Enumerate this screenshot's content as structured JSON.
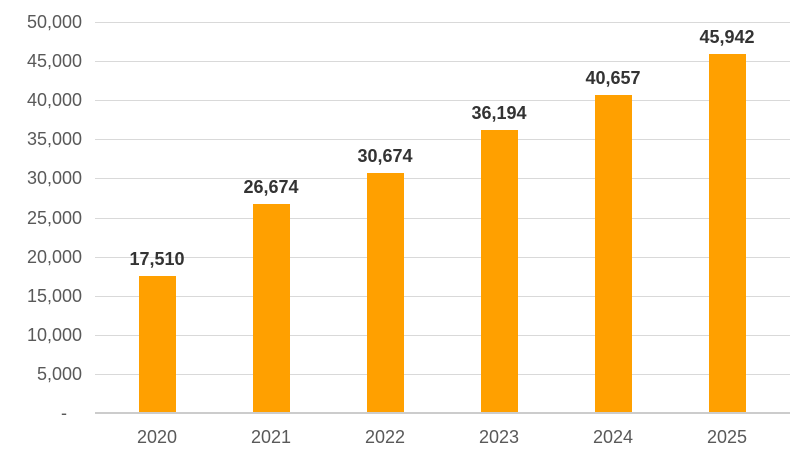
{
  "chart_style": {
    "background": "#FFFFFF",
    "bar_color": "#FFA000",
    "gridline_color": "#D9D9D9",
    "axis_line_color": "#CCCCCC",
    "tick_label_color": "#595959",
    "data_label_color": "#333333"
  },
  "chart_data": {
    "type": "bar",
    "title": "",
    "xlabel": "",
    "ylabel": "",
    "categories": [
      "2020",
      "2021",
      "2022",
      "2023",
      "2024",
      "2025"
    ],
    "values": [
      17510,
      26674,
      30674,
      36194,
      40657,
      45942
    ],
    "data_labels": [
      "17,510",
      "26,674",
      "30,674",
      "36,194",
      "40,657",
      "45,942"
    ],
    "ylim": [
      0,
      50000
    ],
    "ytick_step": 5000,
    "yticks": [
      {
        "value": 50000,
        "label": "50,000"
      },
      {
        "value": 45000,
        "label": "45,000"
      },
      {
        "value": 40000,
        "label": "40,000"
      },
      {
        "value": 35000,
        "label": "35,000"
      },
      {
        "value": 30000,
        "label": "30,000"
      },
      {
        "value": 25000,
        "label": "25,000"
      },
      {
        "value": 20000,
        "label": "20,000"
      },
      {
        "value": 15000,
        "label": "15,000"
      },
      {
        "value": 10000,
        "label": "10,000"
      },
      {
        "value": 5000,
        "label": "5,000"
      },
      {
        "value": 0,
        "label": "-   "
      }
    ],
    "grid": true,
    "legend": false,
    "legend_position": "none"
  }
}
